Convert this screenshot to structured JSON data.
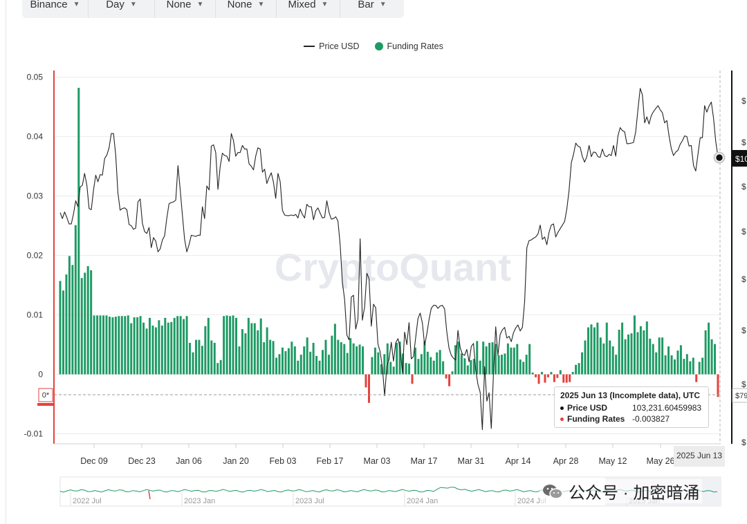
{
  "toolbar": {
    "items": [
      {
        "label": "Binance"
      },
      {
        "label": "Day"
      },
      {
        "label": "None"
      },
      {
        "label": "None"
      },
      {
        "label": "Mixed"
      },
      {
        "label": "Bar"
      }
    ]
  },
  "colors": {
    "price_line": "#222222",
    "funding_positive": "#1e9a64",
    "funding_negative": "#e5413c",
    "watermark": "#e6e8ee"
  },
  "watermark_brand": "CryptoQuant",
  "chart_data": {
    "type": "bar",
    "title": "",
    "legend": {
      "placement": "top-center",
      "entries": [
        {
          "name": "Price USD",
          "kind": "line",
          "color": "#222222"
        },
        {
          "name": "Funding Rates",
          "kind": "bar",
          "color": "#1e9a64"
        }
      ]
    },
    "xaxis": {
      "tick_labels": [
        "Dec 09",
        "Dec 23",
        "Jan 06",
        "Jan 20",
        "Feb 03",
        "Feb 17",
        "Mar 03",
        "Mar 17",
        "Mar 31",
        "Apr 14",
        "Apr 28",
        "May 12",
        "May 26"
      ],
      "range": [
        "2024 Nov 25",
        "2025 Jun 13"
      ],
      "hover_label": "2025 Jun 13"
    },
    "yaxis_left": {
      "label": "Funding Rates",
      "ylim": [
        -0.012,
        0.051
      ],
      "ticks": [
        -0.01,
        0,
        0.01,
        0.02,
        0.03,
        0.04,
        0.05
      ],
      "tick_labels": [
        "-0.01",
        "0",
        "0.01",
        "0.02",
        "0.03",
        "0.04",
        "0.05"
      ],
      "marker_label": "0*"
    },
    "yaxis_right": {
      "label": "Price USD",
      "partial_tick_labels": [
        "$",
        "$",
        "$",
        "$",
        "$",
        "$",
        "$",
        "$"
      ],
      "current_label": "$10",
      "marker_label": "$79"
    },
    "grid": true,
    "series": [
      {
        "name": "Funding Rates",
        "type": "bar",
        "values": [
          0.0157,
          0.0141,
          0.0168,
          0.0199,
          0.0184,
          0.0251,
          0.0482,
          0.0162,
          0.0171,
          0.0182,
          0.0175,
          0.0099,
          0.0099,
          0.0099,
          0.0099,
          0.0099,
          0.0097,
          0.0096,
          0.0097,
          0.0098,
          0.0098,
          0.0098,
          0.0099,
          0.0086,
          0.0096,
          0.0096,
          0.0098,
          0.0087,
          0.0077,
          0.0095,
          0.0082,
          0.0079,
          0.0091,
          0.0082,
          0.0095,
          0.0087,
          0.0088,
          0.0095,
          0.0098,
          0.0098,
          0.0093,
          0.0098,
          0.0053,
          0.0037,
          0.0058,
          0.0058,
          0.0048,
          0.0081,
          0.0095,
          0.0057,
          0.0053,
          0.0019,
          0.0024,
          0.0098,
          0.0099,
          0.0098,
          0.0099,
          0.0095,
          0.0047,
          0.0076,
          0.0069,
          0.0095,
          0.0086,
          0.0086,
          0.0074,
          0.0094,
          0.0054,
          0.0079,
          0.0058,
          0.0056,
          0.0028,
          0.0034,
          0.0045,
          0.0039,
          0.0044,
          0.0055,
          0.0047,
          0.0023,
          0.0033,
          0.0047,
          0.0062,
          0.0038,
          0.0053,
          0.0031,
          0.0023,
          0.0041,
          0.0058,
          0.0033,
          0.0065,
          0.0085,
          0.0058,
          0.0054,
          0.0051,
          0.0036,
          0.0061,
          0.0052,
          0.0047,
          0.005,
          0.0047,
          -0.0022,
          -0.0048,
          0.0029,
          0.0045,
          0.0037,
          0.0017,
          0.0034,
          0.0052,
          0.0021,
          0.0013,
          0.0053,
          0.0055,
          0.0035,
          0.0019,
          0.0018,
          -0.0016,
          0.0045,
          0.0026,
          0.0034,
          0.0056,
          0.0038,
          0.0029,
          0.0023,
          0.0037,
          0.0041,
          0.0022,
          -0.0007,
          -0.002,
          0.0005,
          0.0049,
          0.0055,
          0.0035,
          0.0027,
          0.0015,
          0.0024,
          0.0026,
          0.0056,
          0.0023,
          0.0055,
          0.0047,
          0.0053,
          0.0054,
          0.0051,
          0.0032,
          0.0033,
          0.0035,
          0.0052,
          0.0045,
          0.0045,
          0.0051,
          0.0025,
          0.0021,
          0.0033,
          0.0051,
          0.0003,
          -0.0005,
          -0.0016,
          0.0004,
          -0.0014,
          -0.0005,
          0.0004,
          -0.0013,
          -0.0006,
          0.0007,
          -0.0014,
          -0.0014,
          -0.0013,
          0.0004,
          0.0016,
          0.0019,
          0.0037,
          0.0057,
          0.0079,
          0.0084,
          0.0079,
          0.0087,
          0.0062,
          0.0052,
          0.0087,
          0.0057,
          0.0047,
          0.0033,
          0.0075,
          0.0087,
          0.0059,
          0.0067,
          0.0069,
          0.0099,
          0.0071,
          0.0081,
          0.0074,
          0.0089,
          0.006,
          0.0051,
          0.0037,
          0.0062,
          0.0062,
          0.0032,
          0.0047,
          0.0032,
          0.0025,
          0.004,
          0.0049,
          0.0026,
          0.0034,
          0.0022,
          0.0028,
          -0.0013,
          0.0021,
          0.0028,
          0.0074,
          0.0087,
          0.0059,
          0.0051,
          -0.0038
        ]
      },
      {
        "name": "Price USD",
        "type": "line",
        "values": [
          0.0272,
          0.0262,
          0.0273,
          0.0264,
          0.0253,
          0.0253,
          0.027,
          0.0292,
          0.0282,
          0.0315,
          0.0318,
          0.0338,
          0.0318,
          0.0279,
          0.0277,
          0.031,
          0.0335,
          0.0324,
          0.0336,
          0.0335,
          0.0363,
          0.0369,
          0.0381,
          0.0405,
          0.0405,
          0.0369,
          0.0305,
          0.0276,
          0.0279,
          0.028,
          0.0277,
          0.0252,
          0.025,
          0.0244,
          0.0246,
          0.029,
          0.0295,
          0.0254,
          0.024,
          0.0237,
          0.0247,
          0.0213,
          0.023,
          0.0224,
          0.0206,
          0.0211,
          0.0226,
          0.0233,
          0.0263,
          0.0287,
          0.0289,
          0.029,
          0.0293,
          0.0351,
          0.0311,
          0.0268,
          0.0227,
          0.0206,
          0.0218,
          0.0234,
          0.0233,
          0.0232,
          0.0234,
          0.0234,
          0.0282,
          0.0262,
          0.0317,
          0.031,
          0.0384,
          0.0386,
          0.0373,
          0.0311,
          0.0349,
          0.0372,
          0.0368,
          0.0367,
          0.0358,
          0.0405,
          0.0393,
          0.0367,
          0.0373,
          0.0373,
          0.0385,
          0.0379,
          0.0379,
          0.0354,
          0.035,
          0.0344,
          0.0367,
          0.0381,
          0.0379,
          0.034,
          0.0345,
          0.0321,
          0.0331,
          0.0339,
          0.0323,
          0.0296,
          0.0338,
          0.0324,
          0.0276,
          0.0268,
          0.0267,
          0.0267,
          0.0268,
          0.0267,
          0.0269,
          0.0263,
          0.0278,
          0.0269,
          0.0263,
          0.0286,
          0.0282,
          0.0282,
          0.026,
          0.0275,
          0.028,
          0.0271,
          0.0263,
          0.0264,
          0.0292,
          0.0272,
          0.0261,
          0.0262,
          0.0265,
          0.0258,
          0.0218,
          0.0155,
          0.0126,
          0.0066,
          0.0058,
          0.013,
          0.0133,
          0.0076,
          0.0093,
          0.0228,
          0.0091,
          0.0114,
          0.017,
          0.0161,
          0.0081,
          0.0118,
          0.0112,
          0.0051,
          0.0038,
          0.0011,
          -0.0036,
          0.0014,
          0.0025,
          0.0054,
          0.0022,
          0.0053,
          0.006,
          0.0044,
          0.0003,
          0.0071,
          0.005,
          0.0087,
          0.0026,
          0.003,
          0.0063,
          0.0094,
          0.0103,
          0.0086,
          0.0049,
          0.0068,
          0.0092,
          0.0111,
          0.0116,
          0.0116,
          0.0111,
          0.0115,
          0.0116,
          0.011,
          0.0071,
          0.0044,
          0.0032,
          0.0027,
          0.0024,
          0.0074,
          0.0045,
          0.0034,
          0.0032,
          0.0042,
          0.0021,
          0.0047,
          0.0052,
          0.0007,
          -0.0017,
          -0.003,
          -0.0093,
          0.0013,
          -0.0045,
          -0.0031,
          -0.0091,
          0.0003,
          0.008,
          0.0032,
          0.0067,
          0.0075,
          0.0079,
          0.0061,
          0.0064,
          0.0055,
          0.007,
          0.0078,
          0.0083,
          0.0073,
          0.0079,
          0.0122,
          0.0213,
          0.0225,
          0.0226,
          0.0229,
          0.0231,
          0.0236,
          0.0251,
          0.0227,
          0.0231,
          0.0218,
          0.0239,
          0.0251,
          0.0253,
          0.0231,
          0.0239,
          0.0245,
          0.0251,
          0.0257,
          0.0278,
          0.0309,
          0.0356,
          0.037,
          0.0389,
          0.0384,
          0.0382,
          0.0366,
          0.0357,
          0.0366,
          0.0385,
          0.0366,
          0.0374,
          0.0373,
          0.0366,
          0.0365,
          0.0379,
          0.0368,
          0.0366,
          0.037,
          0.0368,
          0.0385,
          0.0367,
          0.0401,
          0.0415,
          0.041,
          0.0408,
          0.0388,
          0.0388,
          0.0389,
          0.039,
          0.0408,
          0.0445,
          0.0481,
          0.047,
          0.0423,
          0.0433,
          0.0421,
          0.0435,
          0.0442,
          0.0447,
          0.0452,
          0.0445,
          0.044,
          0.0423,
          0.0427,
          0.0401,
          0.038,
          0.0368,
          0.0374,
          0.0377,
          0.0387,
          0.0393,
          0.0401,
          0.04,
          0.0384,
          0.0385,
          0.0351,
          0.0342,
          0.037,
          0.0398,
          0.0398,
          0.0452,
          0.0441,
          0.0451,
          0.0458,
          0.0431,
          0.0392,
          0.0366
        ]
      }
    ],
    "tooltip": {
      "title": "2025 Jun 13 (Incomplete data), UTC",
      "rows": [
        {
          "key": "Price USD",
          "value": "103,231.60459983"
        },
        {
          "key": "Funding Rates",
          "value": "-0.003827"
        }
      ]
    },
    "navigator": {
      "labels": [
        "2022 Jul",
        "2023 Jan",
        "2023 Jul",
        "2024 Jan",
        "2024 Jul",
        "2025 Jan"
      ]
    }
  },
  "overlay": {
    "text": "公众号 · 加密暗涌"
  }
}
